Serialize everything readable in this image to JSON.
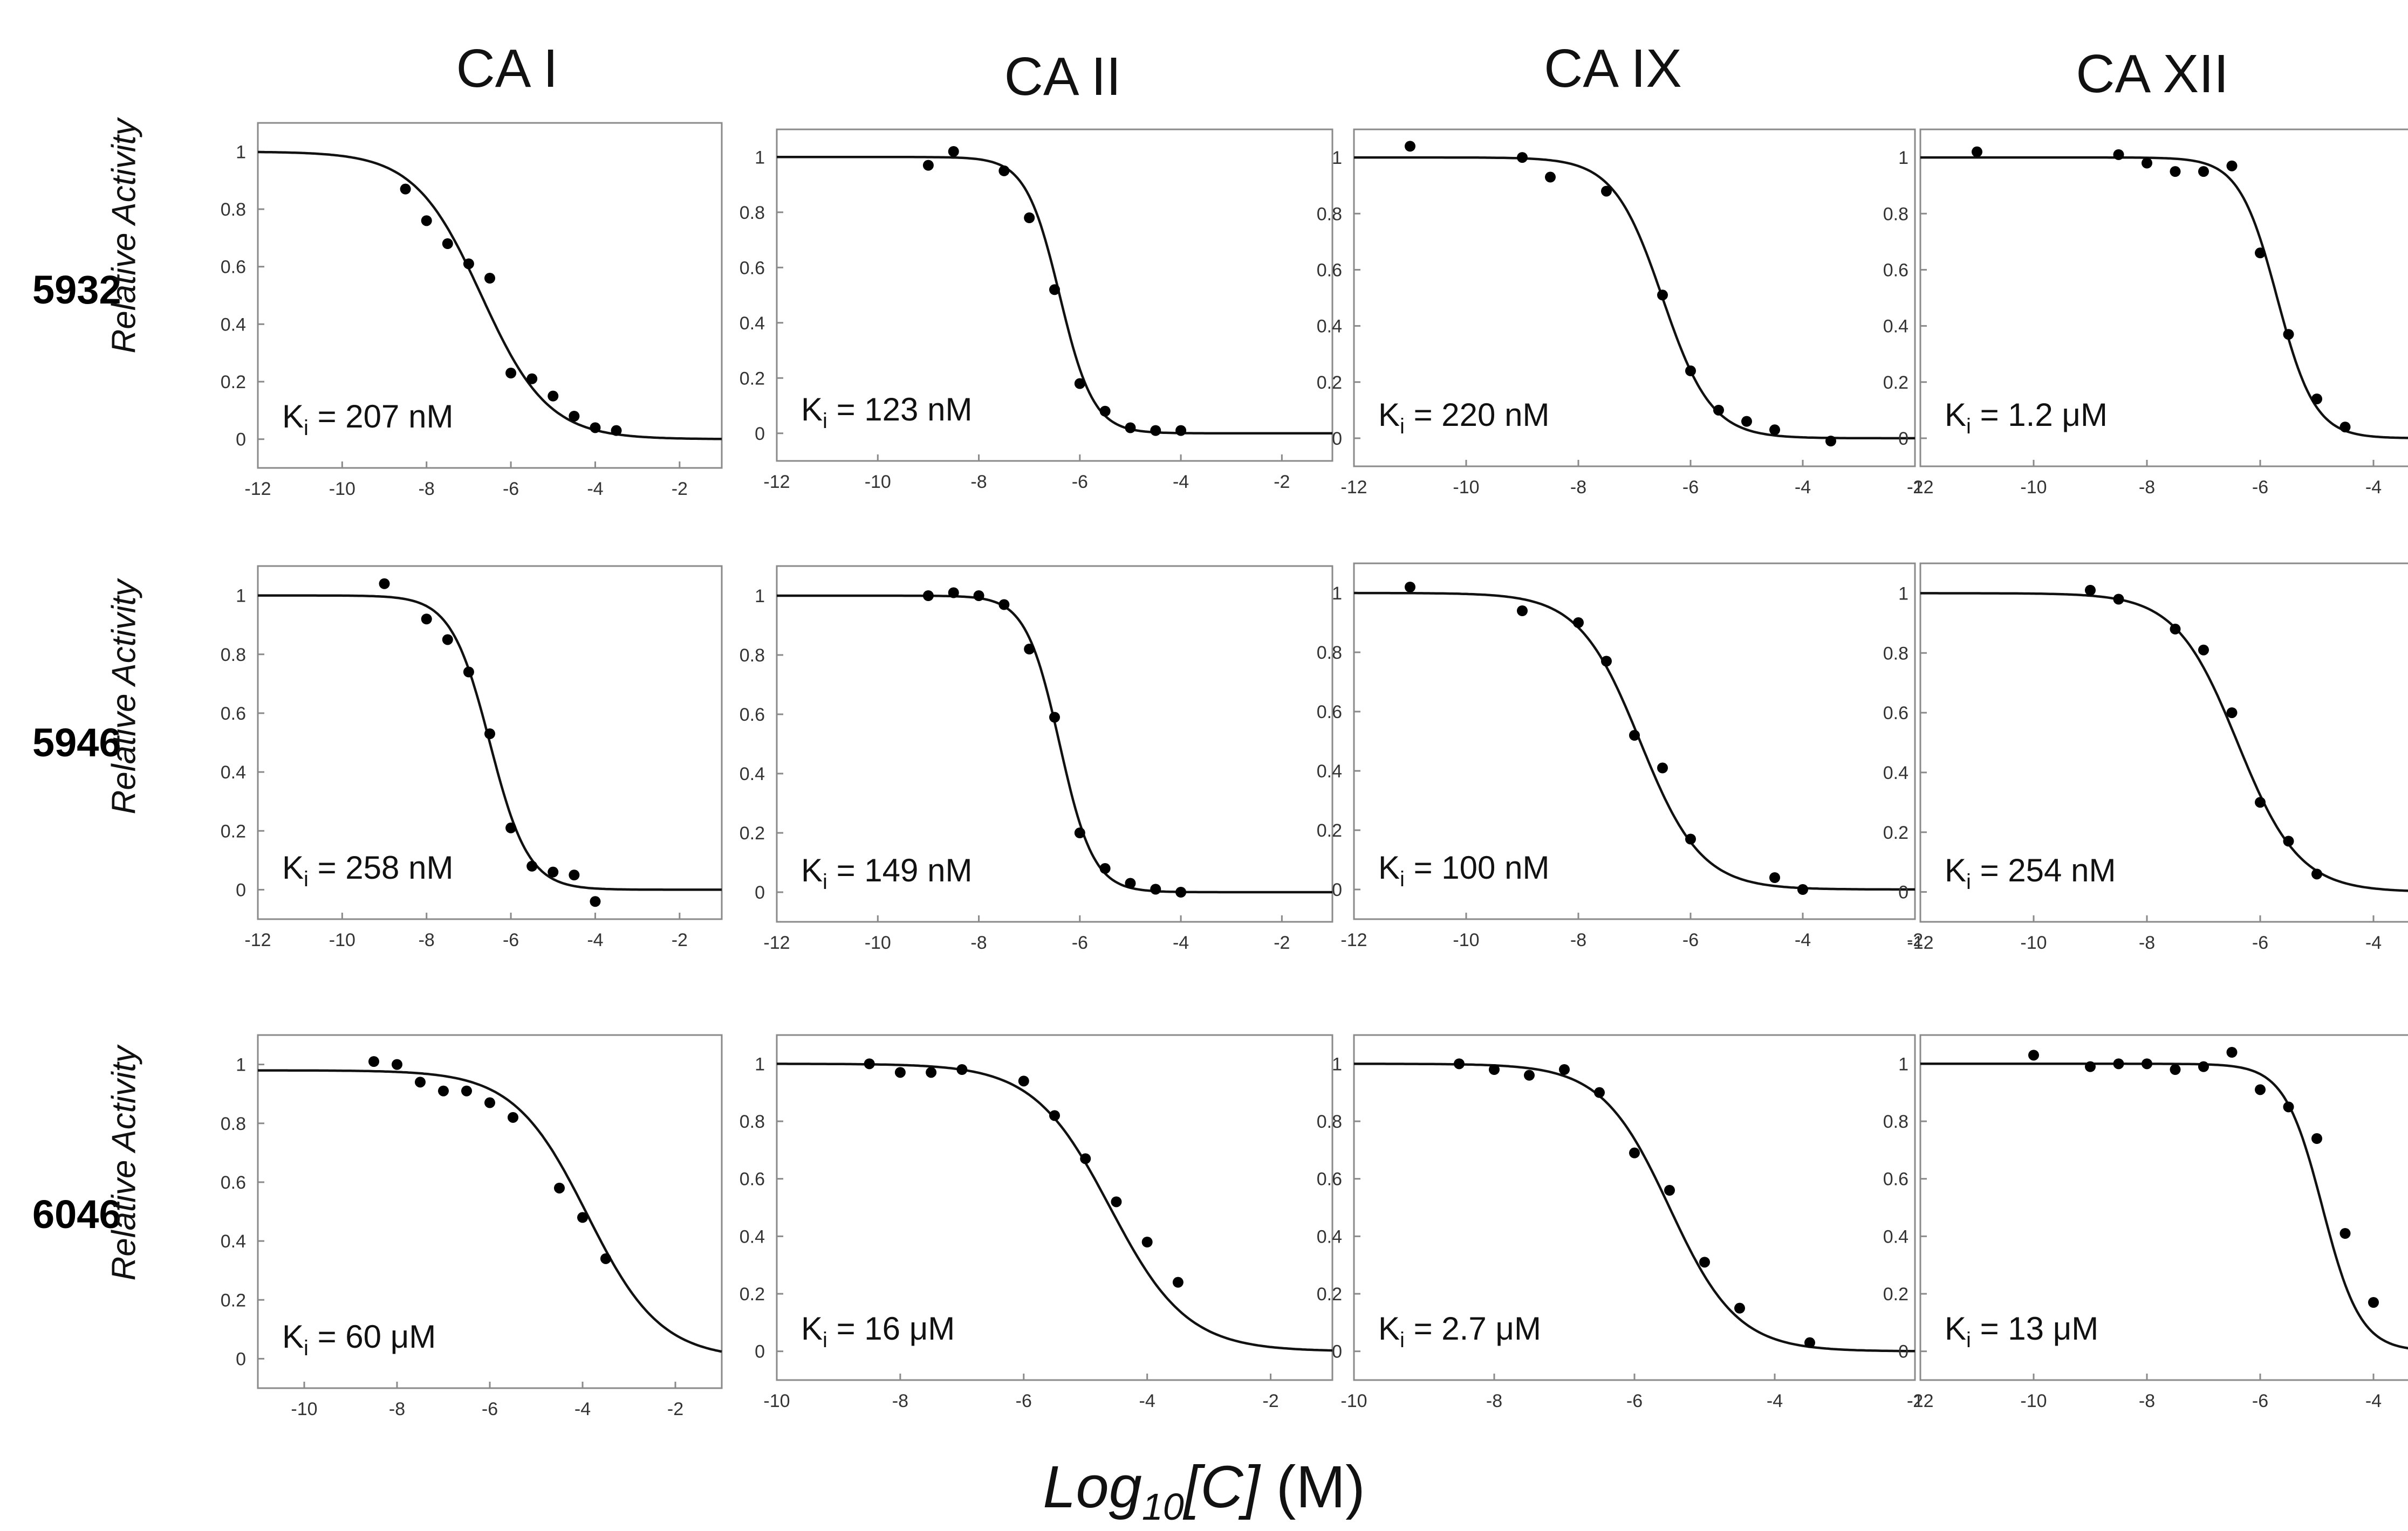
{
  "column_titles": [
    "CA I",
    "CA II",
    "CA IX",
    "CA XII"
  ],
  "row_labels": [
    "5932",
    "5946",
    "6046"
  ],
  "y_axis_label": "Relative Activity",
  "x_axis_title": {
    "log": "Log",
    "sub": "10",
    "var": "[C]",
    "unit": " (M)"
  },
  "ki_prefix": "K",
  "ki_sub": "i",
  "chart_data": [
    {
      "type": "scatter",
      "compound": "5932",
      "enzyme": "CA I",
      "ki_value": " = 207 nM",
      "xlim": [
        -12,
        -1
      ],
      "ylim": [
        -0.1,
        1.1
      ],
      "xticks": [
        -12,
        -10,
        -8,
        -6,
        -4,
        -2
      ],
      "yticks": [
        0,
        0.2,
        0.4,
        0.6,
        0.8,
        1
      ],
      "fit": {
        "logIC50": -6.7,
        "hill": 0.55
      },
      "points": [
        [
          -8.5,
          0.87
        ],
        [
          -8,
          0.76
        ],
        [
          -7.5,
          0.68
        ],
        [
          -7,
          0.61
        ],
        [
          -6.5,
          0.56
        ],
        [
          -6,
          0.23
        ],
        [
          -5.5,
          0.21
        ],
        [
          -5,
          0.15
        ],
        [
          -4.5,
          0.08
        ],
        [
          -4,
          0.04
        ],
        [
          -3.5,
          0.03
        ]
      ]
    },
    {
      "type": "scatter",
      "compound": "5932",
      "enzyme": "CA II",
      "ki_value": " = 123 nM",
      "xlim": [
        -12,
        -1
      ],
      "ylim": [
        -0.1,
        1.1
      ],
      "xticks": [
        -12,
        -10,
        -8,
        -6,
        -4,
        -2
      ],
      "yticks": [
        0,
        0.2,
        0.4,
        0.6,
        0.8,
        1
      ],
      "fit": {
        "logIC50": -6.4,
        "hill": 1.3
      },
      "points": [
        [
          -9,
          0.97
        ],
        [
          -8.5,
          1.02
        ],
        [
          -7.5,
          0.95
        ],
        [
          -7,
          0.78
        ],
        [
          -6.5,
          0.52
        ],
        [
          -6,
          0.18
        ],
        [
          -5.5,
          0.08
        ],
        [
          -5,
          0.02
        ],
        [
          -4.5,
          0.01
        ],
        [
          -4,
          0.01
        ]
      ]
    },
    {
      "type": "scatter",
      "compound": "5932",
      "enzyme": "CA IX",
      "ki_value": " = 220 nM",
      "xlim": [
        -12,
        -2
      ],
      "ylim": [
        -0.1,
        1.1
      ],
      "xticks": [
        -12,
        -10,
        -8,
        -6,
        -4,
        -2
      ],
      "yticks": [
        0,
        0.2,
        0.4,
        0.6,
        0.8,
        1
      ],
      "fit": {
        "logIC50": -6.5,
        "hill": 1.0
      },
      "points": [
        [
          -11,
          1.04
        ],
        [
          -9,
          1.0
        ],
        [
          -8.5,
          0.93
        ],
        [
          -7.5,
          0.88
        ],
        [
          -6.5,
          0.51
        ],
        [
          -6,
          0.24
        ],
        [
          -5.5,
          0.1
        ],
        [
          -5,
          0.06
        ],
        [
          -4.5,
          0.03
        ],
        [
          -3.5,
          -0.01
        ]
      ]
    },
    {
      "type": "scatter",
      "compound": "5932",
      "enzyme": "CA XII",
      "ki_value": " = 1.2 μM",
      "xlim": [
        -12,
        -2
      ],
      "ylim": [
        -0.1,
        1.1
      ],
      "xticks": [
        -12,
        -10,
        -8,
        -6,
        -4,
        -2
      ],
      "yticks": [
        0,
        0.2,
        0.4,
        0.6,
        0.8,
        1
      ],
      "fit": {
        "logIC50": -5.7,
        "hill": 1.3
      },
      "points": [
        [
          -11,
          1.02
        ],
        [
          -8.5,
          1.01
        ],
        [
          -8,
          0.98
        ],
        [
          -7.5,
          0.95
        ],
        [
          -7,
          0.95
        ],
        [
          -6.5,
          0.97
        ],
        [
          -6,
          0.66
        ],
        [
          -5.5,
          0.37
        ],
        [
          -5,
          0.14
        ],
        [
          -4.5,
          0.04
        ]
      ]
    },
    {
      "type": "scatter",
      "compound": "5946",
      "enzyme": "CA I",
      "ki_value": " = 258 nM",
      "xlim": [
        -12,
        -1
      ],
      "ylim": [
        -0.1,
        1.1
      ],
      "xticks": [
        -12,
        -10,
        -8,
        -6,
        -4,
        -2
      ],
      "yticks": [
        0,
        0.2,
        0.4,
        0.6,
        0.8,
        1
      ],
      "fit": {
        "logIC50": -6.5,
        "hill": 0.95
      },
      "points": [
        [
          -9,
          1.04
        ],
        [
          -8,
          0.92
        ],
        [
          -7.5,
          0.85
        ],
        [
          -7,
          0.74
        ],
        [
          -6.5,
          0.53
        ],
        [
          -6,
          0.21
        ],
        [
          -5.5,
          0.08
        ],
        [
          -5,
          0.06
        ],
        [
          -4.5,
          0.05
        ],
        [
          -4,
          -0.04
        ]
      ]
    },
    {
      "type": "scatter",
      "compound": "5946",
      "enzyme": "CA II",
      "ki_value": " = 149 nM",
      "xlim": [
        -12,
        -1
      ],
      "ylim": [
        -0.1,
        1.1
      ],
      "xticks": [
        -12,
        -10,
        -8,
        -6,
        -4,
        -2
      ],
      "yticks": [
        0,
        0.2,
        0.4,
        0.6,
        0.8,
        1
      ],
      "fit": {
        "logIC50": -6.4,
        "hill": 1.3
      },
      "points": [
        [
          -9,
          1.0
        ],
        [
          -8.5,
          1.01
        ],
        [
          -8,
          1.0
        ],
        [
          -7.5,
          0.97
        ],
        [
          -7,
          0.82
        ],
        [
          -6.5,
          0.59
        ],
        [
          -6,
          0.2
        ],
        [
          -5.5,
          0.08
        ],
        [
          -5,
          0.03
        ],
        [
          -4.5,
          0.01
        ],
        [
          -4,
          0.0
        ]
      ]
    },
    {
      "type": "scatter",
      "compound": "5946",
      "enzyme": "CA IX",
      "ki_value": " = 100 nM",
      "xlim": [
        -12,
        -2
      ],
      "ylim": [
        -0.1,
        1.1
      ],
      "xticks": [
        -12,
        -10,
        -8,
        -6,
        -4,
        -2
      ],
      "yticks": [
        0,
        0.2,
        0.4,
        0.6,
        0.8,
        1
      ],
      "fit": {
        "logIC50": -6.9,
        "hill": 0.8
      },
      "points": [
        [
          -11,
          1.02
        ],
        [
          -9,
          0.94
        ],
        [
          -8,
          0.9
        ],
        [
          -7.5,
          0.77
        ],
        [
          -7,
          0.52
        ],
        [
          -6.5,
          0.41
        ],
        [
          -6,
          0.17
        ],
        [
          -4.5,
          0.04
        ],
        [
          -4,
          0.0
        ]
      ]
    },
    {
      "type": "scatter",
      "compound": "5946",
      "enzyme": "CA XII",
      "ki_value": " = 254 nM",
      "xlim": [
        -12,
        -2
      ],
      "ylim": [
        -0.1,
        1.1
      ],
      "xticks": [
        -12,
        -10,
        -8,
        -6,
        -4,
        -2
      ],
      "yticks": [
        0,
        0.2,
        0.4,
        0.6,
        0.8,
        1
      ],
      "fit": {
        "logIC50": -6.4,
        "hill": 0.8
      },
      "points": [
        [
          -9,
          1.01
        ],
        [
          -8.5,
          0.98
        ],
        [
          -7.5,
          0.88
        ],
        [
          -7,
          0.81
        ],
        [
          -6.5,
          0.6
        ],
        [
          -6,
          0.3
        ],
        [
          -5.5,
          0.17
        ],
        [
          -5,
          0.06
        ]
      ]
    },
    {
      "type": "scatter",
      "compound": "6046",
      "enzyme": "CA I",
      "ki_value": " = 60 μM",
      "xlim": [
        -11,
        -1
      ],
      "ylim": [
        -0.1,
        1.1
      ],
      "xticks": [
        -10,
        -8,
        -6,
        -4,
        -2
      ],
      "yticks": [
        0,
        0.2,
        0.4,
        0.6,
        0.8,
        1
      ],
      "fit": {
        "logIC50": -3.9,
        "hill": 0.55,
        "top": 0.98
      },
      "points": [
        [
          -8.5,
          1.01
        ],
        [
          -8,
          1.0
        ],
        [
          -7.5,
          0.94
        ],
        [
          -7,
          0.91
        ],
        [
          -6.5,
          0.91
        ],
        [
          -6,
          0.87
        ],
        [
          -5.5,
          0.82
        ],
        [
          -4.5,
          0.58
        ],
        [
          -4,
          0.48
        ],
        [
          -3.5,
          0.34
        ]
      ]
    },
    {
      "type": "scatter",
      "compound": "6046",
      "enzyme": "CA II",
      "ki_value": " = 16 μM",
      "xlim": [
        -10,
        -1
      ],
      "ylim": [
        -0.1,
        1.1
      ],
      "xticks": [
        -10,
        -8,
        -6,
        -4,
        -2
      ],
      "yticks": [
        0,
        0.2,
        0.4,
        0.6,
        0.8,
        1
      ],
      "fit": {
        "logIC50": -4.6,
        "hill": 0.7
      },
      "points": [
        [
          -8.5,
          1.0
        ],
        [
          -8,
          0.97
        ],
        [
          -7.5,
          0.97
        ],
        [
          -7,
          0.98
        ],
        [
          -6,
          0.94
        ],
        [
          -5.5,
          0.82
        ],
        [
          -5,
          0.67
        ],
        [
          -4.5,
          0.52
        ],
        [
          -4,
          0.38
        ],
        [
          -3.5,
          0.24
        ]
      ]
    },
    {
      "type": "scatter",
      "compound": "6046",
      "enzyme": "CA IX",
      "ki_value": " = 2.7 μM",
      "xlim": [
        -10,
        -2
      ],
      "ylim": [
        -0.1,
        1.1
      ],
      "xticks": [
        -10,
        -8,
        -6,
        -4,
        -2
      ],
      "yticks": [
        0,
        0.2,
        0.4,
        0.6,
        0.8,
        1
      ],
      "fit": {
        "logIC50": -5.5,
        "hill": 0.9
      },
      "points": [
        [
          -8.5,
          1.0
        ],
        [
          -8,
          0.98
        ],
        [
          -7.5,
          0.96
        ],
        [
          -7,
          0.98
        ],
        [
          -6.5,
          0.9
        ],
        [
          -6,
          0.69
        ],
        [
          -5.5,
          0.56
        ],
        [
          -5,
          0.31
        ],
        [
          -4.5,
          0.15
        ],
        [
          -3.5,
          0.03
        ]
      ]
    },
    {
      "type": "scatter",
      "compound": "6046",
      "enzyme": "CA XII",
      "ki_value": " = 13 μM",
      "xlim": [
        -12,
        -2
      ],
      "ylim": [
        -0.1,
        1.1
      ],
      "xticks": [
        -12,
        -10,
        -8,
        -6,
        -4,
        -2
      ],
      "yticks": [
        0,
        0.2,
        0.4,
        0.6,
        0.8,
        1
      ],
      "fit": {
        "logIC50": -4.9,
        "hill": 1.3
      },
      "points": [
        [
          -10,
          1.03
        ],
        [
          -9,
          0.99
        ],
        [
          -8.5,
          1.0
        ],
        [
          -8,
          1.0
        ],
        [
          -7.5,
          0.98
        ],
        [
          -7,
          0.99
        ],
        [
          -6.5,
          1.04
        ],
        [
          -6,
          0.91
        ],
        [
          -5.5,
          0.85
        ],
        [
          -5,
          0.74
        ],
        [
          -4.5,
          0.41
        ],
        [
          -4,
          0.17
        ]
      ]
    }
  ]
}
